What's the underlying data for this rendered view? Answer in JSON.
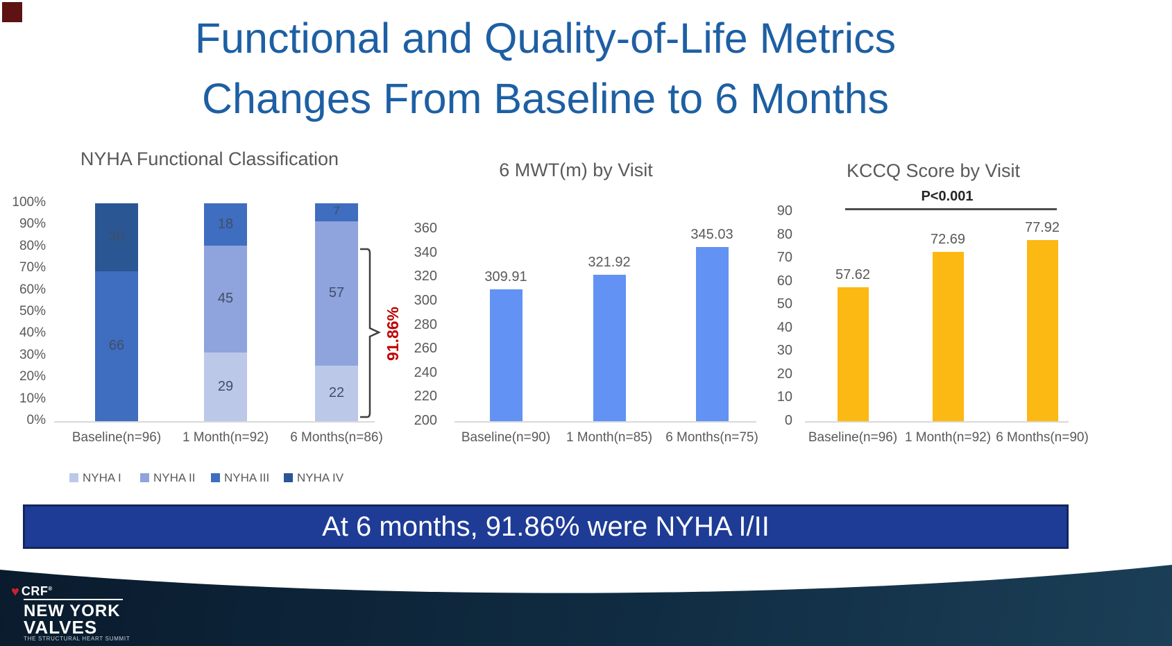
{
  "header": {
    "title_line1": "Functional and Quality-of-Life Metrics",
    "title_line2": "Changes From Baseline to 6 Months"
  },
  "chart_data": [
    {
      "type": "bar",
      "subtype": "stacked-percent",
      "title": "NYHA Functional Classification",
      "categories": [
        "Baseline(n=96)",
        "1 Month(n=92)",
        "6 Months(n=86)"
      ],
      "series": [
        {
          "name": "NYHA I",
          "color": "#bcc8e8",
          "values": [
            0,
            29,
            22
          ]
        },
        {
          "name": "NYHA II",
          "color": "#8fa3dc",
          "values": [
            0,
            45,
            57
          ]
        },
        {
          "name": "NYHA III",
          "color": "#3f6dbf",
          "values": [
            66,
            18,
            7
          ]
        },
        {
          "name": "NYHA IV",
          "color": "#2b5694",
          "values": [
            30,
            0,
            0
          ]
        }
      ],
      "ylabel": "",
      "y_axis": {
        "min": 0,
        "max": 100,
        "step": 10,
        "format": "percent"
      },
      "legend_position": "bottom",
      "grid": false,
      "annotation": {
        "label": "91.86%",
        "color": "#bf0000",
        "meaning": "bracket spanning NYHA I/II portion of 6 Months bar"
      }
    },
    {
      "type": "bar",
      "title": "6 MWT(m) by Visit",
      "categories": [
        "Baseline(n=90)",
        "1 Month(n=85)",
        "6 Months(n=75)"
      ],
      "values": [
        309.91,
        321.92,
        345.03
      ],
      "data_labels": [
        "309.91",
        "321.92",
        "345.03"
      ],
      "bar_color": "#6292f3",
      "y_axis": {
        "min": 200,
        "max": 360,
        "step": 20
      },
      "grid": false
    },
    {
      "type": "bar",
      "title": "KCCQ Score by Visit",
      "categories": [
        "Baseline(n=96)",
        "1 Month(n=92)",
        "6 Months(n=90)"
      ],
      "values": [
        57.62,
        72.69,
        77.92
      ],
      "data_labels": [
        "57.62",
        "72.69",
        "77.92"
      ],
      "bar_color": "#fcb813",
      "y_axis": {
        "min": 0,
        "max": 90,
        "step": 10
      },
      "significance": "P<0.001",
      "grid": false
    }
  ],
  "banner": {
    "text": "At 6 months, 91.86% were NYHA I/II",
    "background": "#1e3c96"
  },
  "footer": {
    "org": "CRF",
    "reg_mark": "®",
    "brand_line1": "NEW YORK",
    "brand_line2": "VALVES",
    "tagline": "THE STRUCTURAL HEART SUMMIT"
  },
  "colors": {
    "title_blue": "#1d5fa3",
    "chart_text_gray": "#595959",
    "annotation_red": "#bf0000",
    "footer_navy": "#0a1b2d"
  }
}
